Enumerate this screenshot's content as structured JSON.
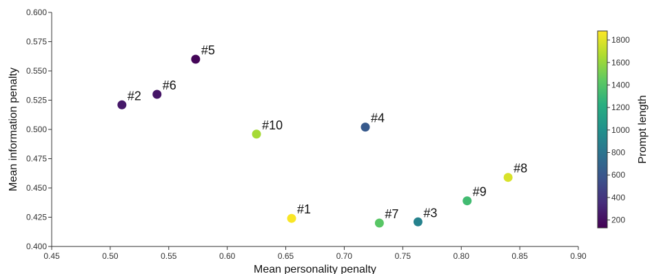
{
  "chart_data": {
    "type": "scatter",
    "xlabel": "Mean personality penalty",
    "ylabel": "Mean information penalty",
    "xlim": [
      0.45,
      0.9
    ],
    "ylim": [
      0.4,
      0.6
    ],
    "xticks": [
      0.45,
      0.5,
      0.55,
      0.6,
      0.65,
      0.7,
      0.75,
      0.8,
      0.85,
      0.9
    ],
    "xtick_labels": [
      "0.45",
      "0.50",
      "0.55",
      "0.60",
      "0.65",
      "0.70",
      "0.75",
      "0.80",
      "0.85",
      "0.90"
    ],
    "yticks": [
      0.4,
      0.425,
      0.45,
      0.475,
      0.5,
      0.525,
      0.55,
      0.575,
      0.6
    ],
    "ytick_labels": [
      "0.400",
      "0.425",
      "0.450",
      "0.475",
      "0.500",
      "0.525",
      "0.550",
      "0.575",
      "0.600"
    ],
    "grid": false,
    "points": [
      {
        "label": "#1",
        "x": 0.655,
        "y": 0.424,
        "prompt_length": 1870
      },
      {
        "label": "#2",
        "x": 0.51,
        "y": 0.521,
        "prompt_length": 250
      },
      {
        "label": "#3",
        "x": 0.763,
        "y": 0.421,
        "prompt_length": 900
      },
      {
        "label": "#4",
        "x": 0.718,
        "y": 0.502,
        "prompt_length": 620
      },
      {
        "label": "#5",
        "x": 0.573,
        "y": 0.56,
        "prompt_length": 150
      },
      {
        "label": "#6",
        "x": 0.54,
        "y": 0.53,
        "prompt_length": 230
      },
      {
        "label": "#7",
        "x": 0.73,
        "y": 0.42,
        "prompt_length": 1420
      },
      {
        "label": "#8",
        "x": 0.84,
        "y": 0.459,
        "prompt_length": 1780
      },
      {
        "label": "#9",
        "x": 0.805,
        "y": 0.439,
        "prompt_length": 1330
      },
      {
        "label": "#10",
        "x": 0.625,
        "y": 0.496,
        "prompt_length": 1640
      }
    ],
    "colorbar": {
      "label": "Prompt length",
      "range": [
        130,
        1880
      ],
      "colormap": "viridis",
      "ticks": [
        200,
        400,
        600,
        800,
        1000,
        1200,
        1400,
        1600,
        1800
      ],
      "tick_labels": [
        "200",
        "400",
        "600",
        "800",
        "1000",
        "1200",
        "1400",
        "1600",
        "1800"
      ],
      "placement": "right"
    }
  }
}
